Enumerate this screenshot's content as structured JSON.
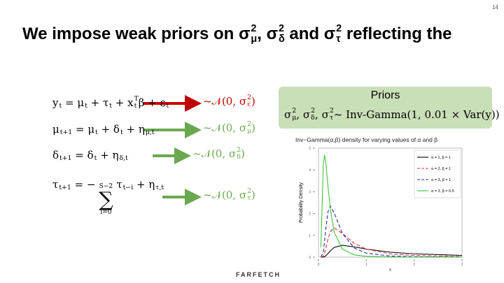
{
  "page_number": "14",
  "title": [
    "We impose weak priors on ",
    {
      "b": "σ",
      "sub": "μ",
      "sup": "2"
    },
    ", ",
    {
      "b": "σ",
      "sub": "δ",
      "sup": "2"
    },
    " and ",
    {
      "b": "σ",
      "sub": "τ",
      "sup": "2"
    },
    " reflecting the"
  ],
  "equations": [
    {
      "formula": [
        {
          "b": "y",
          "sub": "t"
        },
        " = ",
        {
          "b": "μ",
          "sub": "t"
        },
        " + ",
        {
          "b": "τ",
          "sub": "t"
        },
        " + ",
        {
          "b": "x",
          "sub": "t",
          "sup": "T"
        },
        "β + ",
        {
          "b": "ε",
          "sub": "t"
        }
      ],
      "distribution": [
        "~𝒩(0, ",
        {
          "b": "σ",
          "sub": "ε",
          "sup": "2"
        },
        ")"
      ]
    },
    {
      "formula": [
        {
          "b": "μ",
          "sub": "t+1"
        },
        " = ",
        {
          "b": "μ",
          "sub": "t"
        },
        " + ",
        {
          "b": "δ",
          "sub": "t"
        },
        " + ",
        {
          "b": "η",
          "sub": "μ,t"
        }
      ],
      "distribution": [
        "~𝒩(0, ",
        {
          "b": "σ",
          "sub": "μ",
          "sup": "2"
        },
        ")"
      ]
    },
    {
      "formula": [
        {
          "b": "δ",
          "sub": "t+1"
        },
        " = ",
        {
          "b": "δ",
          "sub": "t"
        },
        " + ",
        {
          "b": "η",
          "sub": "δ,t"
        }
      ],
      "distribution": [
        "~𝒩(0, ",
        {
          "b": "σ",
          "sub": "δ",
          "sup": "2"
        },
        ")"
      ]
    },
    {
      "formula": [
        {
          "b": "τ",
          "sub": "t+1"
        },
        " = − ",
        {
          "b": "∑",
          "sub": "i=0",
          "sup": "S−2"
        },
        " ",
        {
          "b": "τ",
          "sub": "t−i"
        },
        " + ",
        {
          "b": "η",
          "sub": "τ,t"
        }
      ],
      "distribution": [
        "~𝒩(0, ",
        {
          "b": "σ",
          "sub": "τ",
          "sup": "2"
        },
        ")"
      ]
    }
  ],
  "priors": {
    "title": "Priors",
    "formula": [
      {
        "b": "σ",
        "sub": "μ",
        "sup": "2"
      },
      ", ",
      {
        "b": "σ",
        "sub": "δ",
        "sup": "2"
      },
      ", ",
      {
        "b": "σ",
        "sub": "τ",
        "sup": "2"
      },
      "~ Inv-Gamma(1, 0.01 × Var(y))"
    ]
  },
  "logo": "FARFETCH",
  "chart_data": {
    "type": "line",
    "title": "Inv−Gamma(α,β) density for varying values of α and β",
    "x_label": "x",
    "y_label": "Probability Density",
    "x": [
      0.05,
      0.1,
      0.125,
      0.15,
      0.2,
      0.25,
      0.33,
      0.5,
      0.75,
      1,
      1.5,
      2,
      3
    ],
    "xlim": [
      0,
      3
    ],
    "xticks": [
      0,
      1,
      2,
      3
    ],
    "ylim": [
      0,
      5
    ],
    "yticks": [
      0,
      1,
      2,
      3,
      4,
      5
    ],
    "legend": "upper right",
    "series": [
      {
        "name": "α = 1, β = 1",
        "color": "#000000",
        "linestyle": "solid",
        "values": [
          0,
          0.0045,
          0.0215,
          0.056,
          0.168,
          0.293,
          0.448,
          0.541,
          0.469,
          0.368,
          0.228,
          0.152,
          0.08
        ]
      },
      {
        "name": "α = 2, β = 1",
        "color": "#e8303a",
        "linestyle": "dashed",
        "values": [
          0,
          0.045,
          0.172,
          0.376,
          0.842,
          1.172,
          1.344,
          1.083,
          0.625,
          0.368,
          0.152,
          0.076,
          0.027
        ]
      },
      {
        "name": "α = 3, β = 1",
        "color": "#2a2aa8",
        "linestyle": "dashed",
        "values": [
          0,
          0.227,
          0.686,
          1.254,
          2.106,
          2.344,
          2.016,
          1.083,
          0.417,
          0.184,
          0.051,
          0.019,
          0.004
        ]
      },
      {
        "name": "α = 3, β = 0.5",
        "color": "#3cc43c",
        "linestyle": "solid",
        "values": [
          0.454,
          4.21,
          4.69,
          4.41,
          3.21,
          2.165,
          1.13,
          0.368,
          0.101,
          0.038,
          0.009,
          0.004,
          0.001
        ]
      }
    ]
  }
}
